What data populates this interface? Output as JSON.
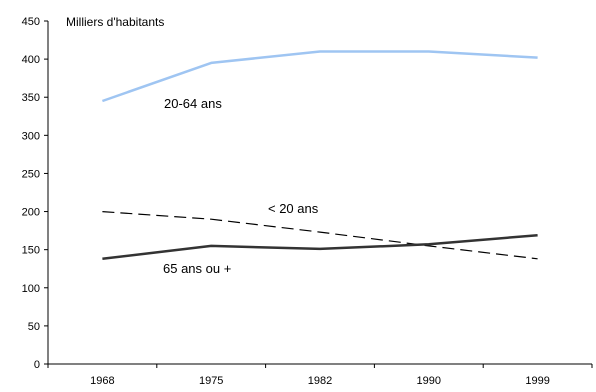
{
  "chart_data": {
    "type": "line",
    "ylabel": "Milliers d'habitants",
    "x": [
      "1968",
      "1975",
      "1982",
      "1990",
      "1999"
    ],
    "ylim": [
      0,
      450
    ],
    "yticks": [
      "0",
      "50",
      "100",
      "150",
      "200",
      "250",
      "300",
      "350",
      "400",
      "450"
    ],
    "grid": false,
    "legend": "none (labels placed next to lines)",
    "series": [
      {
        "name": "20-64 ans",
        "values": [
          345,
          395,
          410,
          410,
          402
        ],
        "color": "#9fc5f2",
        "style": "solid"
      },
      {
        "name": "< 20 ans",
        "values": [
          200,
          190,
          173,
          155,
          138
        ],
        "color": "#000000",
        "style": "dashed"
      },
      {
        "name": "65 ans ou +",
        "values": [
          138,
          155,
          151,
          157,
          169
        ],
        "color": "#333333",
        "style": "solid-bold"
      }
    ]
  }
}
